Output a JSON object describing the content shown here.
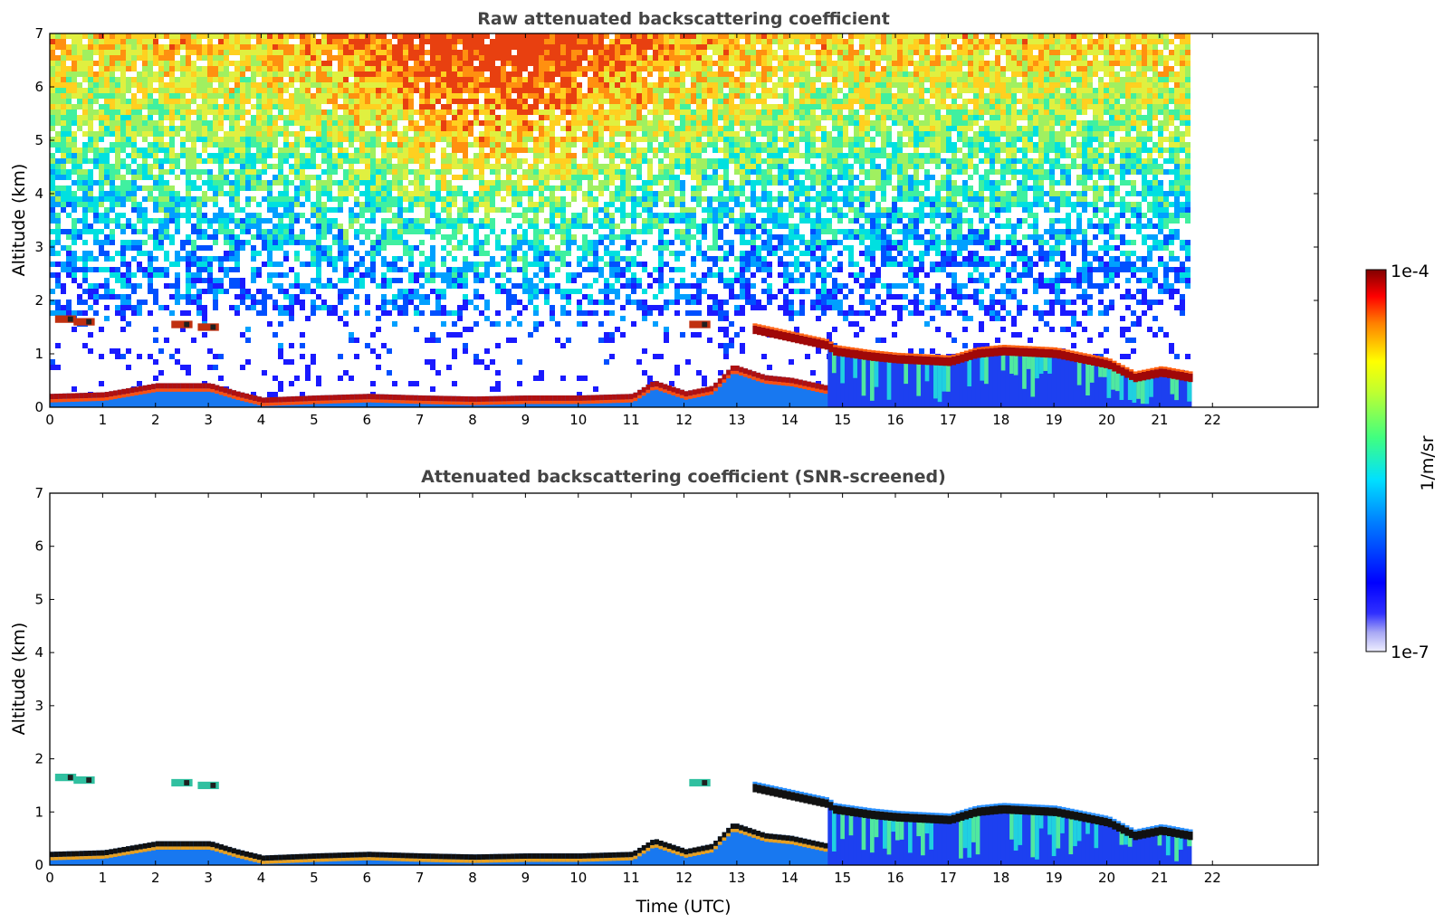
{
  "chart_data": [
    {
      "type": "heatmap",
      "title": "Raw attenuated backscattering coefficient",
      "xlabel": "",
      "ylabel": "Altitude (km)",
      "xlim": [
        0,
        24
      ],
      "ylim": [
        0,
        7
      ],
      "x_ticks": [
        "0",
        "1",
        "2",
        "3",
        "4",
        "5",
        "6",
        "7",
        "8",
        "9",
        "10",
        "11",
        "12",
        "13",
        "14",
        "15",
        "16",
        "17",
        "18",
        "19",
        "20",
        "21",
        "22"
      ],
      "y_ticks": [
        "0",
        "1",
        "2",
        "3",
        "4",
        "5",
        "6",
        "7"
      ],
      "data_extent_hours": [
        0,
        21.55
      ],
      "screened": false,
      "features": {
        "boundary_layer_top_km": [
          [
            0,
            0.25
          ],
          [
            1,
            0.28
          ],
          [
            2,
            0.45
          ],
          [
            3,
            0.45
          ],
          [
            3.5,
            0.3
          ],
          [
            4,
            0.18
          ],
          [
            5,
            0.22
          ],
          [
            6,
            0.25
          ],
          [
            7,
            0.22
          ],
          [
            8,
            0.2
          ],
          [
            9,
            0.22
          ],
          [
            10,
            0.22
          ],
          [
            11,
            0.25
          ],
          [
            11.4,
            0.5
          ],
          [
            12,
            0.3
          ],
          [
            12.5,
            0.4
          ],
          [
            12.9,
            0.8
          ],
          [
            13.5,
            0.6
          ],
          [
            14,
            0.55
          ],
          [
            14.7,
            0.4
          ]
        ],
        "cloud_layer_km": [
          [
            13.3,
            1.45
          ],
          [
            14,
            1.3
          ],
          [
            14.7,
            1.15
          ],
          [
            14.8,
            1.05
          ],
          [
            15.5,
            0.95
          ],
          [
            16,
            0.9
          ],
          [
            17,
            0.85
          ],
          [
            17.5,
            1.0
          ],
          [
            18,
            1.05
          ],
          [
            19,
            1.0
          ],
          [
            20,
            0.8
          ],
          [
            20.5,
            0.55
          ],
          [
            21,
            0.65
          ],
          [
            21.55,
            0.55
          ]
        ],
        "elevated_cloud_patches_km": [
          [
            0.3,
            1.65
          ],
          [
            0.65,
            1.6
          ],
          [
            2.5,
            1.55
          ],
          [
            3.0,
            1.5
          ],
          [
            12.3,
            1.55
          ]
        ]
      }
    },
    {
      "type": "heatmap",
      "title": "Attenuated backscattering coefficient (SNR-screened)",
      "xlabel": "Time (UTC)",
      "ylabel": "Altitude (km)",
      "xlim": [
        0,
        24
      ],
      "ylim": [
        0,
        7
      ],
      "x_ticks": [
        "0",
        "1",
        "2",
        "3",
        "4",
        "5",
        "6",
        "7",
        "8",
        "9",
        "10",
        "11",
        "12",
        "13",
        "14",
        "15",
        "16",
        "17",
        "18",
        "19",
        "20",
        "21",
        "22"
      ],
      "y_ticks": [
        "0",
        "1",
        "2",
        "3",
        "4",
        "5",
        "6",
        "7"
      ],
      "data_extent_hours": [
        0,
        21.55
      ],
      "screened": true
    }
  ],
  "colorbar": {
    "max_label": "1e-4",
    "min_label": "1e-7",
    "unit_label": "1/m/sr",
    "colormap": "jet",
    "vmin": 1e-07,
    "vmax": 0.0001
  }
}
